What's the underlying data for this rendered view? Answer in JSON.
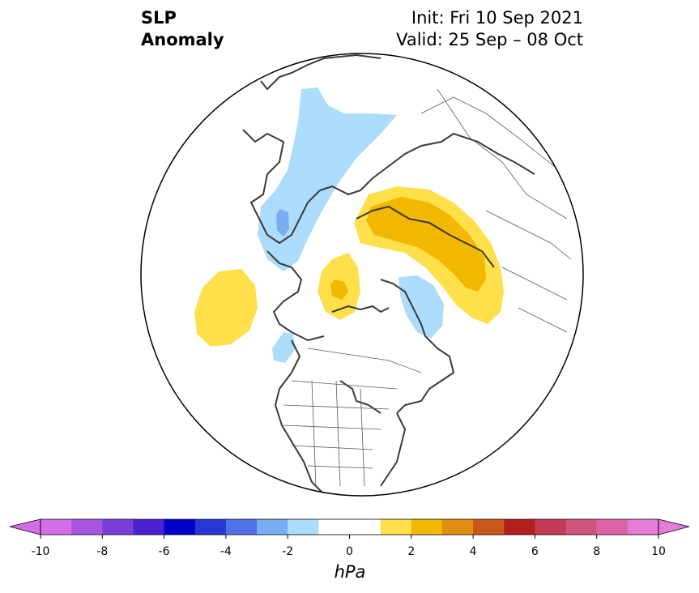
{
  "title": {
    "left_line1": "SLP",
    "left_line2": "Anomaly",
    "init": "Init: Fri 10 Sep 2021",
    "valid": "Valid: 25 Sep – 08 Oct"
  },
  "colorbar": {
    "units": "hPa",
    "tick_labels": [
      "-10",
      "-8",
      "-6",
      "-4",
      "-2",
      "0",
      "2",
      "4",
      "6",
      "8",
      "10"
    ],
    "colors": [
      "#d46de8",
      "#a855e0",
      "#7a3ed8",
      "#4a22d0",
      "#0000cc",
      "#2638d8",
      "#4d72e6",
      "#78aef0",
      "#acdcfb",
      "#ffffff",
      "#ffffff",
      "#ffe04a",
      "#f2b800",
      "#e08e10",
      "#c9561a",
      "#b32020",
      "#c43a55",
      "#d0557d",
      "#dc63a8",
      "#e77bd8"
    ],
    "extend_left": "#d46de8",
    "extend_right": "#e77bd8"
  },
  "map": {
    "projection": "north polar stereographic",
    "anomaly_colors": {
      "neg1": "#acdcfb",
      "neg2": "#78aef0",
      "pos1": "#ffe04a",
      "pos2": "#f2b800",
      "coast": "#3a3a3a"
    }
  }
}
